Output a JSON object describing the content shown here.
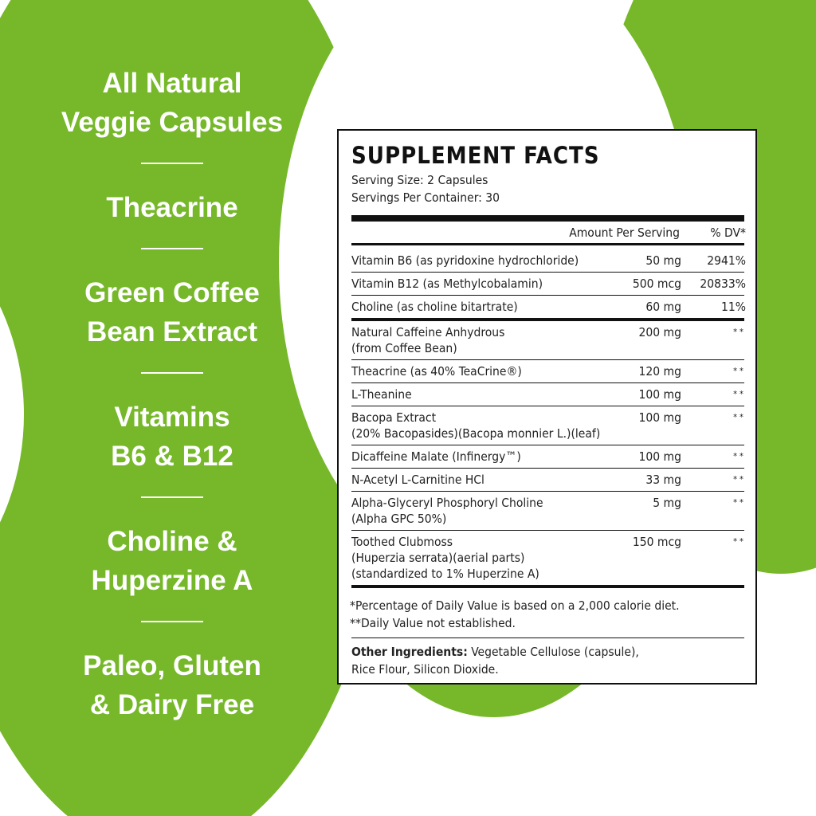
{
  "features": [
    [
      "All Natural",
      "Veggie Capsules"
    ],
    [
      "Theacrine"
    ],
    [
      "Green Coffee",
      "Bean Extract"
    ],
    [
      "Vitamins",
      "B6 & B12"
    ],
    [
      "Choline &",
      "Huperzine A"
    ],
    [
      "Paleo, Gluten",
      "& Dairy Free"
    ]
  ],
  "facts": {
    "title": "SUPPLEMENT FACTS",
    "serving_size": "Serving Size: 2 Capsules",
    "servings_per_container": "Servings Per Container: 30",
    "amount_header": "Amount Per Serving",
    "dv_header": "% DV*",
    "rows": [
      {
        "name": [
          "Vitamin B6 (as pyridoxine hydrochloride)"
        ],
        "amount": "50 mg",
        "dv": "2941%"
      },
      {
        "name": [
          "Vitamin B12 (as Methylcobalamin)"
        ],
        "amount": "500 mcg",
        "dv": "20833%"
      },
      {
        "name": [
          "Choline (as choline bitartrate)"
        ],
        "amount": "60 mg",
        "dv": "11%"
      },
      {
        "name": [
          "Natural Caffeine Anhydrous",
          "(from Coffee Bean)"
        ],
        "amount": "200 mg",
        "dv": "**"
      },
      {
        "name": [
          "Theacrine (as 40% TeaCrine®)"
        ],
        "amount": "120 mg",
        "dv": "**"
      },
      {
        "name": [
          "L-Theanine"
        ],
        "amount": "100 mg",
        "dv": "**"
      },
      {
        "name": [
          "Bacopa Extract",
          "(20% Bacopasides)(Bacopa monnier L.)(leaf)"
        ],
        "amount": "100 mg",
        "dv": "**"
      },
      {
        "name": [
          "Dicaffeine Malate (Infinergy™)"
        ],
        "amount": "100 mg",
        "dv": "**"
      },
      {
        "name": [
          "N-Acetyl L-Carnitine HCl"
        ],
        "amount": "33 mg",
        "dv": "**"
      },
      {
        "name": [
          "Alpha-Glyceryl Phosphoryl Choline",
          "(Alpha GPC 50%)"
        ],
        "amount": "5 mg",
        "dv": "**"
      },
      {
        "name": [
          "Toothed Clubmoss",
          "(Huperzia serrata)(aerial parts)",
          "(standardized to 1% Huperzine A)"
        ],
        "amount": "150 mcg",
        "dv": "**"
      }
    ],
    "footnotes": [
      "*Percentage of Daily Value is based on a 2,000 calorie diet.",
      "**Daily Value not established."
    ],
    "other_label": "Other Ingredients:",
    "other_lines": [
      " Vegetable Cellulose (capsule),",
      "Rice Flour, Silicon Dioxide."
    ]
  }
}
